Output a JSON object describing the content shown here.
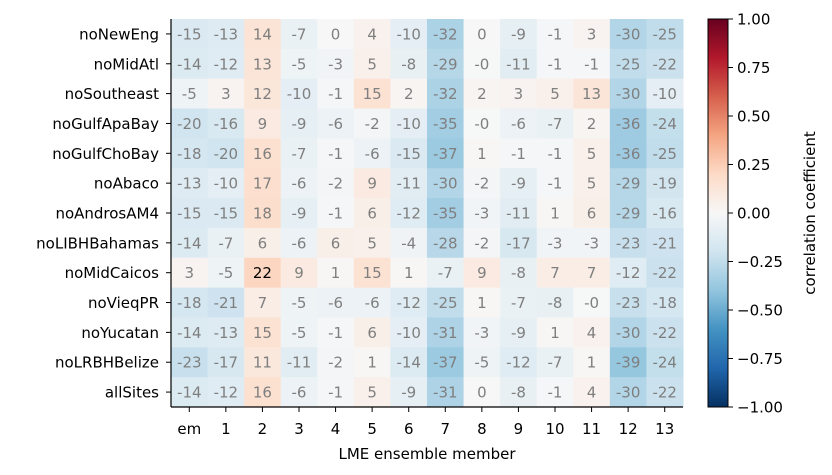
{
  "chart_data": {
    "type": "heatmap",
    "title": "",
    "xlabel": "LME ensemble member",
    "ylabel": "",
    "columns": [
      "em",
      "1",
      "2",
      "3",
      "4",
      "5",
      "6",
      "7",
      "8",
      "9",
      "10",
      "11",
      "12",
      "13"
    ],
    "rows": [
      "noNewEng",
      "noMidAtl",
      "noSoutheast",
      "noGulfApaBay",
      "noGulfChoBay",
      "noAbaco",
      "noAndrosAM4",
      "noLIBHBahamas",
      "noMidCaicos",
      "noVieqPR",
      "noYucatan",
      "noLRBHBelize",
      "allSites"
    ],
    "values": [
      [
        -15,
        -13,
        14,
        -7,
        0,
        4,
        -10,
        -32,
        0,
        -9,
        -1,
        3,
        -30,
        -25
      ],
      [
        -14,
        -12,
        13,
        -5,
        -3,
        5,
        -8,
        -29,
        -0.4,
        -11,
        -1,
        -1,
        -25,
        -22
      ],
      [
        -5,
        3,
        12,
        -10,
        -1,
        15,
        2,
        -32,
        2,
        3,
        5,
        13,
        -30,
        -10
      ],
      [
        -20,
        -16,
        9,
        -9,
        -6,
        -2,
        -10,
        -35,
        -0.4,
        -6,
        -7,
        2,
        -36,
        -24
      ],
      [
        -18,
        -20,
        16,
        -7,
        -1,
        -6,
        -15,
        -37,
        1,
        -1,
        -1,
        5,
        -36,
        -25
      ],
      [
        -13,
        -10,
        17,
        -6,
        -2,
        9,
        -11,
        -30,
        -2,
        -9,
        -1,
        5,
        -29,
        -19
      ],
      [
        -15,
        -15,
        18,
        -9,
        -1,
        6,
        -12,
        -35,
        -3,
        -11,
        1,
        6,
        -29,
        -16
      ],
      [
        -14,
        -7,
        6,
        -6,
        6,
        5,
        -4,
        -28,
        -2,
        -17,
        -3,
        -3,
        -23,
        -21
      ],
      [
        3,
        -5,
        22,
        9,
        1,
        15,
        1,
        -7,
        9,
        -8,
        7,
        7,
        -12,
        -22
      ],
      [
        -18,
        -21,
        7,
        -5,
        -6,
        -6,
        -12,
        -25,
        1,
        -7,
        -8,
        -0.4,
        -23,
        -18
      ],
      [
        -14,
        -13,
        15,
        -5,
        -1,
        6,
        -10,
        -31,
        -3,
        -9,
        1,
        4,
        -30,
        -22
      ],
      [
        -23,
        -17,
        11,
        -11,
        -2,
        1,
        -14,
        -37,
        -5,
        -12,
        -7,
        1,
        -39,
        -24
      ],
      [
        -14,
        -12,
        16,
        -6,
        -1,
        5,
        -9,
        -31,
        0,
        -8,
        -1,
        4,
        -30,
        -22
      ]
    ],
    "cell_labels": [
      [
        "-15",
        "-13",
        "14",
        "-7",
        "0",
        "4",
        "-10",
        "-32",
        "0",
        "-9",
        "-1",
        "3",
        "-30",
        "-25"
      ],
      [
        "-14",
        "-12",
        "13",
        "-5",
        "-3",
        "5",
        "-8",
        "-29",
        "-0",
        "-11",
        "-1",
        "-1",
        "-25",
        "-22"
      ],
      [
        "-5",
        "3",
        "12",
        "-10",
        "-1",
        "15",
        "2",
        "-32",
        "2",
        "3",
        "5",
        "13",
        "-30",
        "-10"
      ],
      [
        "-20",
        "-16",
        "9",
        "-9",
        "-6",
        "-2",
        "-10",
        "-35",
        "-0",
        "-6",
        "-7",
        "2",
        "-36",
        "-24"
      ],
      [
        "-18",
        "-20",
        "16",
        "-7",
        "-1",
        "-6",
        "-15",
        "-37",
        "1",
        "-1",
        "-1",
        "5",
        "-36",
        "-25"
      ],
      [
        "-13",
        "-10",
        "17",
        "-6",
        "-2",
        "9",
        "-11",
        "-30",
        "-2",
        "-9",
        "-1",
        "5",
        "-29",
        "-19"
      ],
      [
        "-15",
        "-15",
        "18",
        "-9",
        "-1",
        "6",
        "-12",
        "-35",
        "-3",
        "-11",
        "1",
        "6",
        "-29",
        "-16"
      ],
      [
        "-14",
        "-7",
        "6",
        "-6",
        "6",
        "5",
        "-4",
        "-28",
        "-2",
        "-17",
        "-3",
        "-3",
        "-23",
        "-21"
      ],
      [
        "3",
        "-5",
        "22",
        "9",
        "1",
        "15",
        "1",
        "-7",
        "9",
        "-8",
        "7",
        "7",
        "-12",
        "-22"
      ],
      [
        "-18",
        "-21",
        "7",
        "-5",
        "-6",
        "-6",
        "-12",
        "-25",
        "1",
        "-7",
        "-8",
        "-0",
        "-23",
        "-18"
      ],
      [
        "-14",
        "-13",
        "15",
        "-5",
        "-1",
        "6",
        "-10",
        "-31",
        "-3",
        "-9",
        "1",
        "4",
        "-30",
        "-22"
      ],
      [
        "-23",
        "-17",
        "11",
        "-11",
        "-2",
        "1",
        "-14",
        "-37",
        "-5",
        "-12",
        "-7",
        "1",
        "-39",
        "-24"
      ],
      [
        "-14",
        "-12",
        "16",
        "-6",
        "-1",
        "5",
        "-9",
        "-31",
        "0",
        "-8",
        "-1",
        "4",
        "-30",
        "-22"
      ]
    ],
    "value_scale": "correlation x 100",
    "highlight_cell": {
      "row": "noMidCaicos",
      "column": "2",
      "label_color": "#000000"
    },
    "cell_label_color": "#7f7f7f",
    "colormap": "RdBu_r",
    "colorbar": {
      "label": "correlation coefficient",
      "range": [
        -1.0,
        1.0
      ],
      "ticks": [
        "1.00",
        "0.75",
        "0.50",
        "0.25",
        "0.00",
        "−0.25",
        "−0.50",
        "−0.75",
        "−1.00"
      ],
      "tick_values": [
        1.0,
        0.75,
        0.5,
        0.25,
        0.0,
        -0.25,
        -0.5,
        -0.75,
        -1.0
      ]
    }
  }
}
